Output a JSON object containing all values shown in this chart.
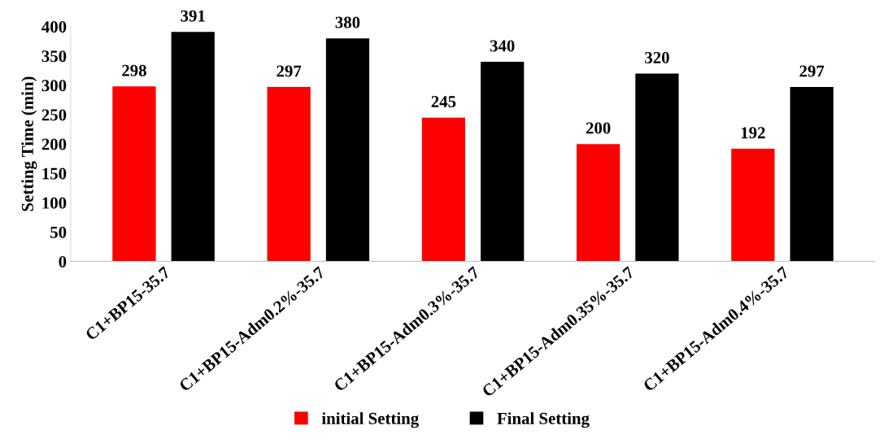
{
  "chart_data": {
    "type": "bar",
    "ylabel": "Setting Time (min)",
    "categories": [
      "C1+BP15-35.7",
      "C1+BP15-Adm0.2%-35.7",
      "C1+BP15-Adm0.3%-35.7",
      "C1+BP15-Adm0.35%-35.7",
      "C1+BP15-Adm0.4%-35.7"
    ],
    "series": [
      {
        "name": "initial Setting",
        "color": "#ff0000",
        "values": [
          298,
          297,
          245,
          200,
          192
        ]
      },
      {
        "name": "Final Setting",
        "color": "#000000",
        "values": [
          391,
          380,
          340,
          320,
          297
        ]
      }
    ],
    "ylim": [
      0,
      400
    ],
    "yticks": [
      0,
      50,
      100,
      150,
      200,
      250,
      300,
      350,
      400
    ],
    "data_labels": true,
    "grid": false,
    "legend": "bottom"
  }
}
